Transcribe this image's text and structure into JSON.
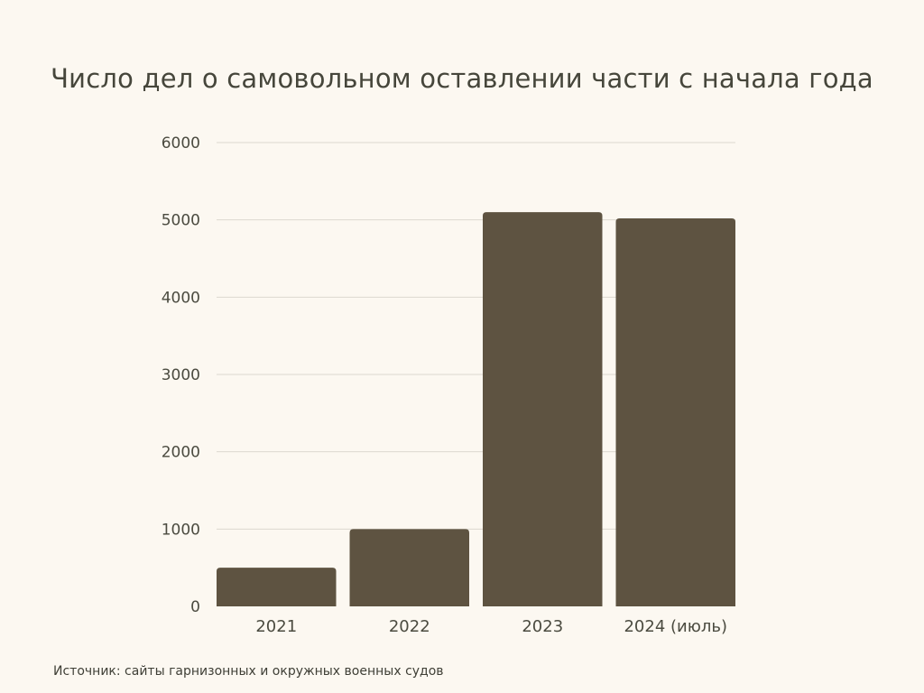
{
  "title": "Число дел о самовольном оставлении части с начала года",
  "source": "Источник: сайты гарнизонных и окружных военных судов",
  "colors": {
    "background": "#fcf8f1",
    "bar": "#5e5341",
    "grid": "#ddd8d0",
    "text": "#4b4b40"
  },
  "chart_data": {
    "type": "bar",
    "categories": [
      "2021",
      "2022",
      "2023",
      "2024 (июль)"
    ],
    "values": [
      500,
      1000,
      5100,
      5020
    ],
    "ylim": [
      0,
      6000
    ],
    "yticks": [
      0,
      1000,
      2000,
      3000,
      4000,
      5000,
      6000
    ],
    "grid": true,
    "legend": "none"
  }
}
